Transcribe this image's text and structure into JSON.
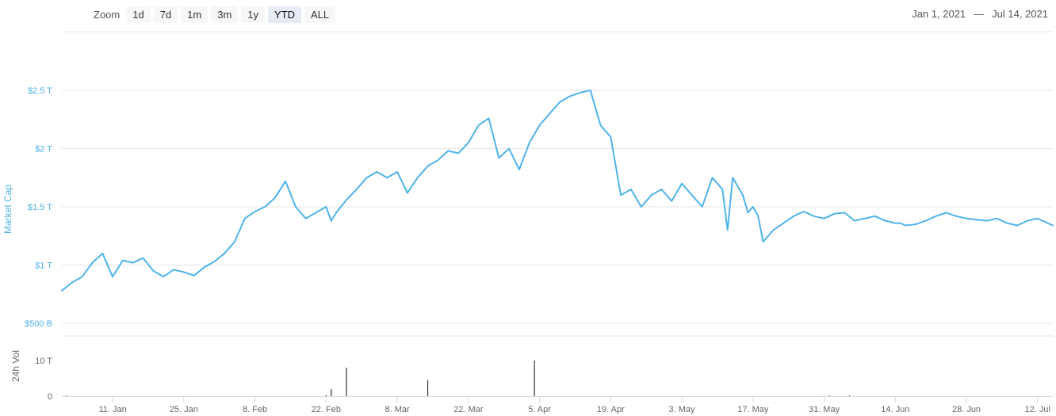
{
  "toolbar": {
    "zoom_label": "Zoom",
    "zoom_buttons": [
      "1d",
      "7d",
      "1m",
      "3m",
      "1y",
      "YTD",
      "ALL"
    ],
    "active_zoom": "YTD",
    "range_start": "Jan 1, 2021",
    "range_sep": "—",
    "range_end": "Jul 14, 2021"
  },
  "colors": {
    "line": "#4fb3e8",
    "axis_text_primary": "#4fb3e8",
    "axis_text_secondary": "#666666",
    "grid": "#e6e6e6",
    "volume": "#333333"
  },
  "chart_data": {
    "type": "line",
    "title": "",
    "ylabel": "Market Cap",
    "ylabel2": "24h Vol",
    "ylim": [
      500,
      2500
    ],
    "ytick_values": [
      500,
      1000,
      1500,
      2000,
      2500
    ],
    "ytick_labels": [
      "$500 B",
      "$1 T",
      "$1.5 T",
      "$2 T",
      "$2.5 T"
    ],
    "x_range_days": [
      0,
      195
    ],
    "xticks_days": [
      10,
      24,
      38,
      52,
      66,
      80,
      94,
      108,
      122,
      136,
      150,
      164,
      178,
      192
    ],
    "xtick_labels": [
      "11. Jan",
      "25. Jan",
      "8. Feb",
      "22. Feb",
      "8. Mar",
      "22. Mar",
      "5. Apr",
      "19. Apr",
      "3. May",
      "17. May",
      "31. May",
      "14. Jun",
      "28. Jun",
      "12. Jul"
    ],
    "market_cap_series": {
      "x": [
        0,
        2,
        4,
        6,
        8,
        10,
        12,
        14,
        16,
        18,
        20,
        22,
        24,
        26,
        28,
        30,
        32,
        34,
        36,
        38,
        40,
        42,
        44,
        46,
        48,
        50,
        52,
        53,
        54,
        56,
        58,
        60,
        62,
        64,
        66,
        68,
        70,
        72,
        74,
        76,
        78,
        80,
        82,
        84,
        86,
        88,
        90,
        92,
        94,
        96,
        98,
        100,
        102,
        104,
        106,
        108,
        110,
        112,
        114,
        116,
        118,
        120,
        122,
        124,
        126,
        128,
        130,
        131,
        132,
        134,
        135,
        136,
        137,
        138,
        140,
        142,
        144,
        146,
        148,
        150,
        152,
        154,
        156,
        158,
        160,
        162,
        164,
        165,
        166,
        168,
        170,
        172,
        174,
        176,
        178,
        180,
        182,
        184,
        186,
        188,
        190,
        192,
        194,
        195
      ],
      "y": [
        780,
        850,
        900,
        1020,
        1100,
        900,
        1040,
        1020,
        1060,
        950,
        900,
        960,
        940,
        910,
        980,
        1030,
        1100,
        1200,
        1400,
        1460,
        1500,
        1580,
        1720,
        1500,
        1400,
        1450,
        1500,
        1380,
        1450,
        1560,
        1650,
        1750,
        1800,
        1750,
        1800,
        1620,
        1750,
        1850,
        1900,
        1980,
        1960,
        2050,
        2200,
        2260,
        1920,
        2000,
        1820,
        2050,
        2200,
        2300,
        2400,
        2450,
        2480,
        2500,
        2200,
        2100,
        1600,
        1650,
        1500,
        1600,
        1650,
        1550,
        1700,
        1600,
        1500,
        1750,
        1650,
        1300,
        1750,
        1600,
        1450,
        1500,
        1420,
        1200,
        1300,
        1360,
        1420,
        1460,
        1420,
        1400,
        1440,
        1450,
        1380,
        1400,
        1420,
        1380,
        1360,
        1360,
        1340,
        1350,
        1380,
        1420,
        1450,
        1420,
        1400,
        1390,
        1380,
        1400,
        1360,
        1340,
        1380,
        1400,
        1360,
        1340
      ]
    },
    "volume_series": {
      "ytick_values": [
        0,
        10
      ],
      "ytick_labels": [
        "0",
        "10 T"
      ],
      "spikes": [
        {
          "x": 1,
          "value": 0.2
        },
        {
          "x": 52,
          "value": 0.3
        },
        {
          "x": 53,
          "value": 2.0
        },
        {
          "x": 56,
          "value": 8.0
        },
        {
          "x": 72,
          "value": 4.5
        },
        {
          "x": 93,
          "value": 10.0
        },
        {
          "x": 151,
          "value": 0.2
        },
        {
          "x": 155,
          "value": 0.2
        }
      ]
    }
  }
}
